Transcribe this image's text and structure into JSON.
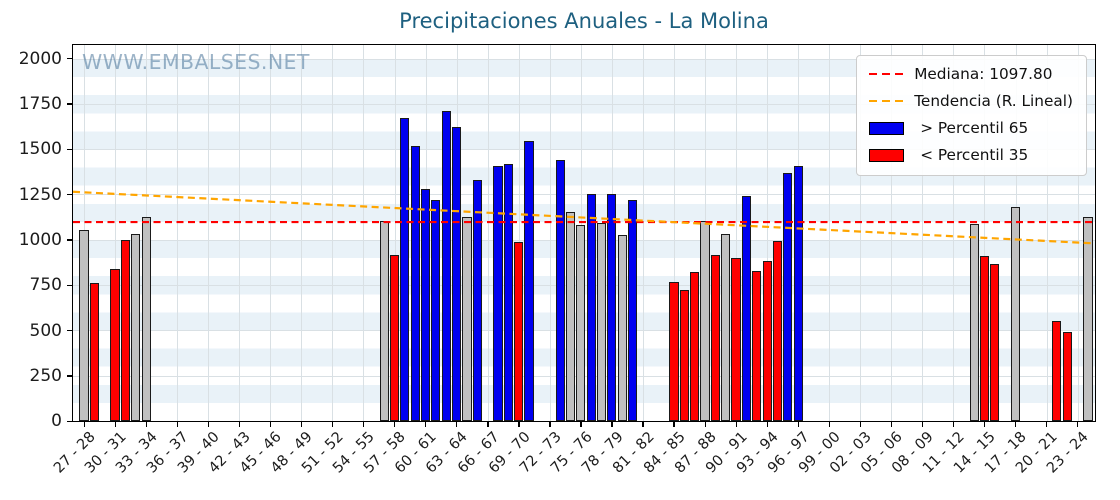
{
  "title": "Precipitaciones Anuales - La Molina",
  "watermark": "WWW.EMBALSES.NET",
  "legend": {
    "median": "Mediana: 1097.80",
    "trend": "Tendencia (R. Lineal)",
    "above": "> Percentil 65",
    "below": "< Percentil 35"
  },
  "colors": {
    "bar_above": "#0000f0",
    "bar_below": "#fe0000",
    "bar_normal": "#c0c0c0",
    "bar_edge": "#1a1a1a",
    "median_line": "#ff0000",
    "trend_line": "#ffa500",
    "title_text": "#1e6080",
    "watermark_text": "rgba(60,105,145,0.5)",
    "axis_text": "#1c1c1c",
    "grid_line": "#d9e0e4",
    "stripe": "#e9f2f8",
    "plot_border": "#000000"
  },
  "chart_data": {
    "type": "bar",
    "title": "Precipitaciones Anuales - La Molina",
    "xlabel": "",
    "ylabel": "",
    "ylim": [
      0,
      2075
    ],
    "yticks": [
      0,
      250,
      500,
      750,
      1000,
      1250,
      1500,
      1750,
      2000
    ],
    "x_tick_every": 3,
    "n_slots": 98,
    "x_tick_labels": [
      "27 - 28",
      "30 - 31",
      "33 - 34",
      "36 - 37",
      "39 - 40",
      "42 - 43",
      "45 - 46",
      "48 - 49",
      "51 - 52",
      "54 - 55",
      "57 - 58",
      "60 - 61",
      "63 - 64",
      "66 - 67",
      "69 - 70",
      "72 - 73",
      "75 - 76",
      "78 - 79",
      "81 - 82",
      "84 - 85",
      "87 - 88",
      "90 - 91",
      "93 - 94",
      "96 - 97",
      "99 - 00",
      "02 - 03",
      "05 - 06",
      "08 - 09",
      "11 - 12",
      "14 - 15",
      "17 - 18",
      "20 - 21",
      "23 - 24"
    ],
    "median_value": 1097.8,
    "trend_line": {
      "type": "linear",
      "start_value": 1265,
      "end_value": 980
    },
    "grid": true,
    "legend_position": "upper right",
    "bars": [
      {
        "label": "27 - 28",
        "slot": 0,
        "band": "normal",
        "value": 1055
      },
      {
        "label": "28 - 29",
        "slot": 1,
        "band": "below_p35",
        "value": 760
      },
      {
        "label": "30 - 31",
        "slot": 3,
        "band": "below_p35",
        "value": 840
      },
      {
        "label": "31 - 32",
        "slot": 4,
        "band": "below_p35",
        "value": 1000
      },
      {
        "label": "32 - 33",
        "slot": 5,
        "band": "normal",
        "value": 1030
      },
      {
        "label": "33 - 34",
        "slot": 6,
        "band": "normal",
        "value": 1125
      },
      {
        "label": "56 - 57",
        "slot": 29,
        "band": "normal",
        "value": 1105
      },
      {
        "label": "57 - 58",
        "slot": 30,
        "band": "below_p35",
        "value": 915
      },
      {
        "label": "58 - 59",
        "slot": 31,
        "band": "above_p65",
        "value": 1670
      },
      {
        "label": "59 - 60",
        "slot": 32,
        "band": "above_p65",
        "value": 1515
      },
      {
        "label": "60 - 61",
        "slot": 33,
        "band": "above_p65",
        "value": 1280
      },
      {
        "label": "61 - 62",
        "slot": 34,
        "band": "above_p65",
        "value": 1220
      },
      {
        "label": "62 - 63",
        "slot": 35,
        "band": "above_p65",
        "value": 1710
      },
      {
        "label": "63 - 64",
        "slot": 36,
        "band": "above_p65",
        "value": 1620
      },
      {
        "label": "64 - 65",
        "slot": 37,
        "band": "normal",
        "value": 1125
      },
      {
        "label": "65 - 66",
        "slot": 38,
        "band": "above_p65",
        "value": 1330
      },
      {
        "label": "67 - 68",
        "slot": 40,
        "band": "above_p65",
        "value": 1410
      },
      {
        "label": "68 - 69",
        "slot": 41,
        "band": "above_p65",
        "value": 1420
      },
      {
        "label": "69 - 70",
        "slot": 42,
        "band": "below_p35",
        "value": 990
      },
      {
        "label": "70 - 71",
        "slot": 43,
        "band": "above_p65",
        "value": 1545
      },
      {
        "label": "73 - 74",
        "slot": 46,
        "band": "above_p65",
        "value": 1440
      },
      {
        "label": "74 - 75",
        "slot": 47,
        "band": "normal",
        "value": 1155
      },
      {
        "label": "75 - 76",
        "slot": 48,
        "band": "normal",
        "value": 1080
      },
      {
        "label": "76 - 77",
        "slot": 49,
        "band": "above_p65",
        "value": 1255
      },
      {
        "label": "77 - 78",
        "slot": 50,
        "band": "normal",
        "value": 1095
      },
      {
        "label": "78 - 79",
        "slot": 51,
        "band": "above_p65",
        "value": 1250
      },
      {
        "label": "79 - 80",
        "slot": 52,
        "band": "normal",
        "value": 1025
      },
      {
        "label": "80 - 81",
        "slot": 53,
        "band": "above_p65",
        "value": 1220
      },
      {
        "label": "84 - 85",
        "slot": 57,
        "band": "below_p35",
        "value": 765
      },
      {
        "label": "85 - 86",
        "slot": 58,
        "band": "below_p35",
        "value": 725
      },
      {
        "label": "86 - 87",
        "slot": 59,
        "band": "below_p35",
        "value": 825
      },
      {
        "label": "87 - 88",
        "slot": 60,
        "band": "normal",
        "value": 1105
      },
      {
        "label": "88 - 89",
        "slot": 61,
        "band": "below_p35",
        "value": 915
      },
      {
        "label": "89 - 90",
        "slot": 62,
        "band": "normal",
        "value": 1030
      },
      {
        "label": "90 - 91",
        "slot": 63,
        "band": "below_p35",
        "value": 900
      },
      {
        "label": "91 - 92",
        "slot": 64,
        "band": "above_p65",
        "value": 1240
      },
      {
        "label": "92 - 93",
        "slot": 65,
        "band": "below_p35",
        "value": 830
      },
      {
        "label": "93 - 94",
        "slot": 66,
        "band": "below_p35",
        "value": 885
      },
      {
        "label": "94 - 95",
        "slot": 67,
        "band": "below_p35",
        "value": 995
      },
      {
        "label": "95 - 96",
        "slot": 68,
        "band": "above_p65",
        "value": 1370
      },
      {
        "label": "96 - 97",
        "slot": 69,
        "band": "above_p65",
        "value": 1410
      },
      {
        "label": "13 - 14",
        "slot": 86,
        "band": "normal",
        "value": 1085
      },
      {
        "label": "14 - 15",
        "slot": 87,
        "band": "below_p35",
        "value": 910
      },
      {
        "label": "15 - 16",
        "slot": 88,
        "band": "below_p35",
        "value": 865
      },
      {
        "label": "17 - 18",
        "slot": 90,
        "band": "normal",
        "value": 1180
      },
      {
        "label": "21 - 22",
        "slot": 94,
        "band": "below_p35",
        "value": 550
      },
      {
        "label": "22 - 23",
        "slot": 95,
        "band": "below_p35",
        "value": 490
      },
      {
        "label": "24 - 25",
        "slot": 97,
        "band": "normal",
        "value": 1125
      }
    ]
  }
}
